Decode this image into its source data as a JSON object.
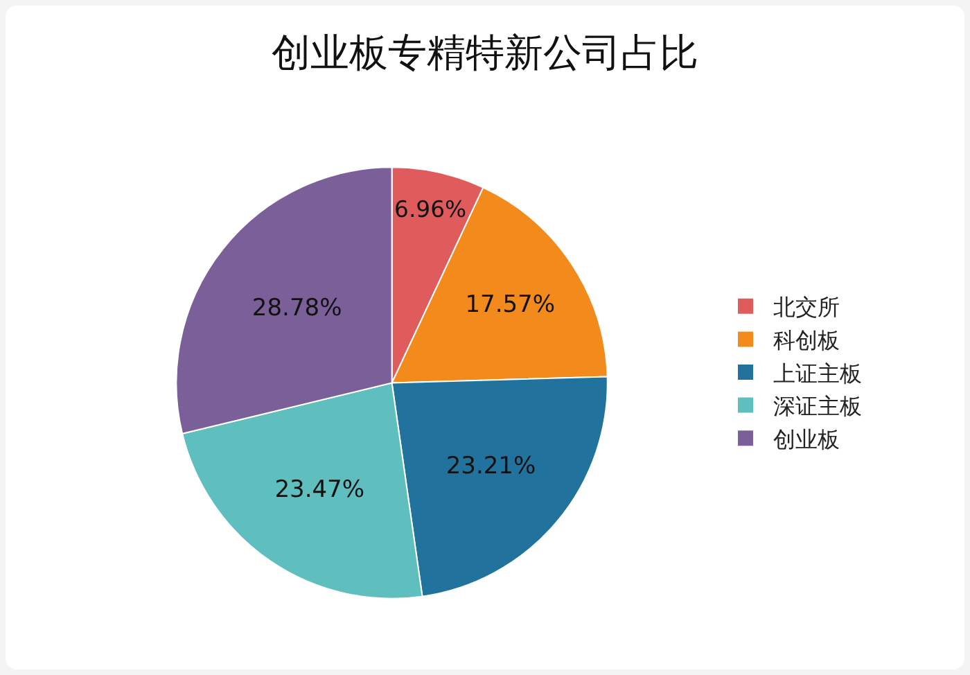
{
  "chart_data": {
    "type": "pie",
    "title": "创业板专精特新公司占比",
    "categories": [
      "北交所",
      "科创板",
      "上证主板",
      "深证主板",
      "创业板"
    ],
    "values": [
      6.96,
      17.57,
      23.21,
      23.47,
      28.78
    ],
    "value_labels": [
      "6.96%",
      "17.57%",
      "23.21%",
      "23.47%",
      "28.78%"
    ],
    "colors": [
      "#e05c5c",
      "#f28a1c",
      "#21739e",
      "#5fbfbf",
      "#7b5f99"
    ],
    "legend": "right"
  }
}
